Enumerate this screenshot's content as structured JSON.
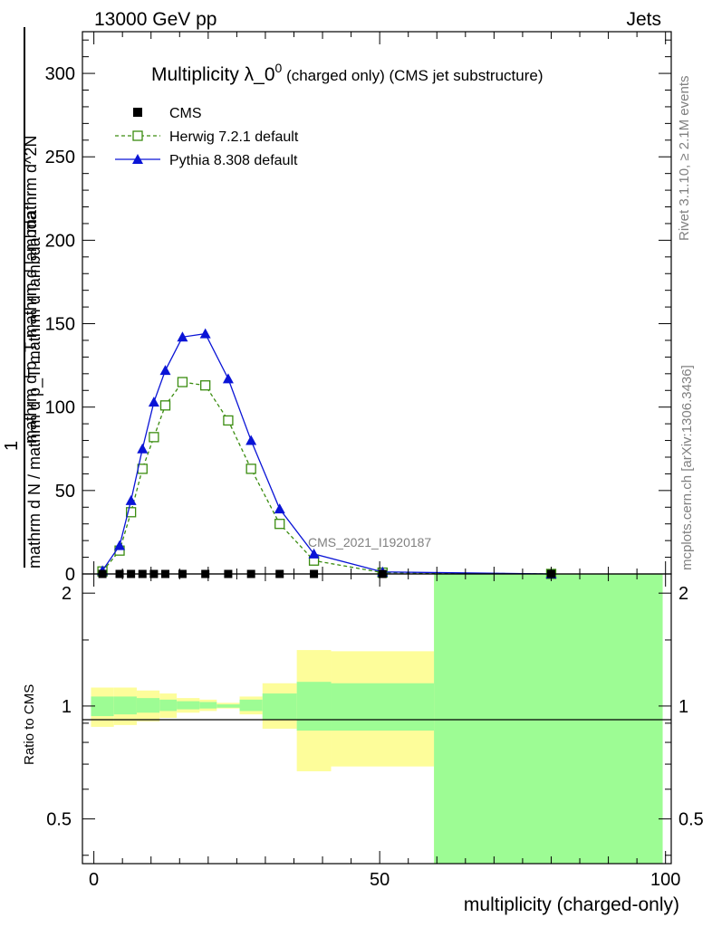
{
  "header": {
    "left": "13000 GeV pp",
    "right": "Jets"
  },
  "side_labels": {
    "rivet": "Rivet 3.1.10, ≥ 2.1M events",
    "mcplots": "mcplots.cern.ch [arXiv:1306.3436]"
  },
  "chart_data": {
    "type": "line",
    "title": "Multiplicity λ_0",
    "title_sup": "0",
    "title_suffix": " (charged only) (CMS jet substructure)",
    "watermark": "CMS_2021_I1920187",
    "xlabel": "multiplicity (charged-only)",
    "ylabel_numerator": "1",
    "ylabel_denominator": "mathrm d N / mathrm d p_T mathrm d lambda",
    "ylabel_top": "mathrm d^2N",
    "ylabel_mid": "mathrm d p_T mathrm d lambda",
    "ratio_ylabel": "Ratio to CMS",
    "xlim": [
      -2,
      101
    ],
    "ylim": [
      0,
      325
    ],
    "ratio_ylim": [
      0.38,
      2.25
    ],
    "x_ticks": [
      "0",
      "50",
      "100"
    ],
    "y_ticks": [
      "0",
      "50",
      "100",
      "150",
      "200",
      "250",
      "300"
    ],
    "ratio_ticks": [
      "0.5",
      "1",
      "2"
    ],
    "colors": {
      "cms": "#000000",
      "herwig": "#3a8c0f",
      "pythia": "#0a14d6",
      "band_inner": "#9dfc94",
      "band_outer": "#fdfd9a"
    },
    "series": [
      {
        "name": "CMS",
        "x": [
          1.5,
          4.5,
          6.5,
          8.5,
          10.5,
          12.5,
          15.5,
          19.5,
          23.5,
          27.5,
          32.5,
          38.5,
          50.5,
          80
        ],
        "values": [
          0,
          0,
          0,
          0,
          0,
          0,
          0,
          0,
          0,
          0,
          0,
          0,
          0,
          0
        ]
      },
      {
        "name": "Herwig 7.2.1 default",
        "x": [
          1.5,
          4.5,
          6.5,
          8.5,
          10.5,
          12.5,
          15.5,
          19.5,
          23.5,
          27.5,
          32.5,
          38.5,
          50.5,
          80
        ],
        "values": [
          1.5,
          14,
          37,
          63,
          82,
          101,
          115,
          113,
          92,
          63,
          30,
          8,
          0.8,
          0.01
        ]
      },
      {
        "name": "Pythia 8.308 default",
        "x": [
          1.5,
          4.5,
          6.5,
          8.5,
          10.5,
          12.5,
          15.5,
          19.5,
          23.5,
          27.5,
          32.5,
          38.5,
          50.5,
          80
        ],
        "values": [
          2,
          17,
          44,
          75,
          103,
          122,
          142,
          144,
          117,
          80,
          39,
          12,
          1.2,
          0.02
        ]
      }
    ],
    "ratio_band": {
      "bins": [
        [
          -0.5,
          3.5,
          0.94,
          1.06,
          0.88,
          1.12
        ],
        [
          3.5,
          7.5,
          0.95,
          1.06,
          0.89,
          1.12
        ],
        [
          7.5,
          11.5,
          0.96,
          1.05,
          0.91,
          1.1
        ],
        [
          11.5,
          14.5,
          0.97,
          1.04,
          0.93,
          1.08
        ],
        [
          14.5,
          18.5,
          0.98,
          1.03,
          0.96,
          1.05
        ],
        [
          18.5,
          21.5,
          0.985,
          1.025,
          0.97,
          1.04
        ],
        [
          21.5,
          25.5,
          0.99,
          1.01,
          0.985,
          1.02
        ],
        [
          25.5,
          29.5,
          0.97,
          1.04,
          0.95,
          1.06
        ],
        [
          29.5,
          35.5,
          0.92,
          1.08,
          0.87,
          1.15
        ],
        [
          35.5,
          41.5,
          0.86,
          1.16,
          0.67,
          1.41
        ],
        [
          41.5,
          59.5,
          0.86,
          1.15,
          0.69,
          1.4
        ],
        [
          59.5,
          99.5,
          0.38,
          2.25,
          0.38,
          2.25
        ]
      ]
    }
  }
}
